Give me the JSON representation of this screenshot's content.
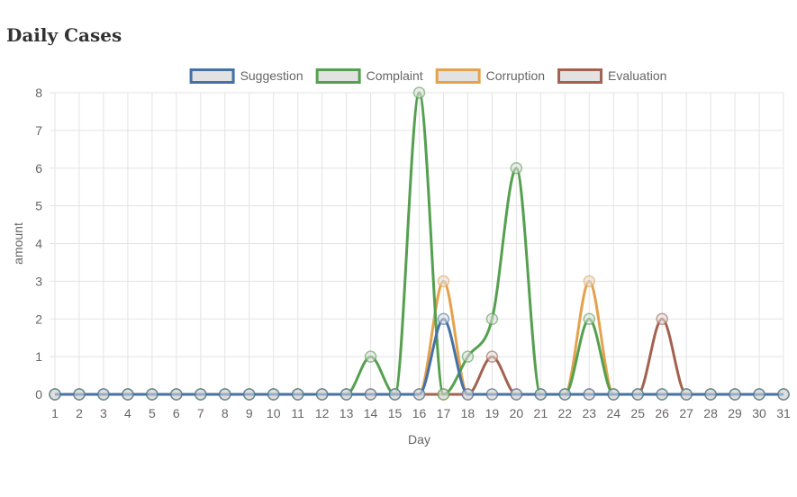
{
  "page": {
    "title": "Daily Cases"
  },
  "chart_data": {
    "type": "line",
    "title": "",
    "xlabel": "Day",
    "ylabel": "amount",
    "x": [
      1,
      2,
      3,
      4,
      5,
      6,
      7,
      8,
      9,
      10,
      11,
      12,
      13,
      14,
      15,
      16,
      17,
      18,
      19,
      20,
      21,
      22,
      23,
      24,
      25,
      26,
      27,
      28,
      29,
      30,
      31
    ],
    "ylim": [
      0,
      8
    ],
    "yticks": [
      0,
      1,
      2,
      3,
      4,
      5,
      6,
      7,
      8
    ],
    "grid": true,
    "legend_position": "top",
    "series": [
      {
        "name": "Suggestion",
        "color": "#4571a5",
        "values": [
          0,
          0,
          0,
          0,
          0,
          0,
          0,
          0,
          0,
          0,
          0,
          0,
          0,
          0,
          0,
          0,
          2,
          0,
          0,
          0,
          0,
          0,
          0,
          0,
          0,
          0,
          0,
          0,
          0,
          0,
          0
        ]
      },
      {
        "name": "Complaint",
        "color": "#55a04f",
        "values": [
          0,
          0,
          0,
          0,
          0,
          0,
          0,
          0,
          0,
          0,
          0,
          0,
          0,
          1,
          0,
          8,
          0,
          1,
          2,
          6,
          0,
          0,
          2,
          0,
          0,
          0,
          0,
          0,
          0,
          0,
          0
        ]
      },
      {
        "name": "Corruption",
        "color": "#e5a24e",
        "values": [
          0,
          0,
          0,
          0,
          0,
          0,
          0,
          0,
          0,
          0,
          0,
          0,
          0,
          0,
          0,
          0,
          3,
          0,
          0,
          0,
          0,
          0,
          3,
          0,
          0,
          0,
          0,
          0,
          0,
          0,
          0
        ]
      },
      {
        "name": "Evaluation",
        "color": "#a3624f",
        "values": [
          0,
          0,
          0,
          0,
          0,
          0,
          0,
          0,
          0,
          0,
          0,
          0,
          0,
          0,
          0,
          0,
          0,
          0,
          1,
          0,
          0,
          0,
          0,
          0,
          0,
          2,
          0,
          0,
          0,
          0,
          0
        ]
      }
    ]
  }
}
